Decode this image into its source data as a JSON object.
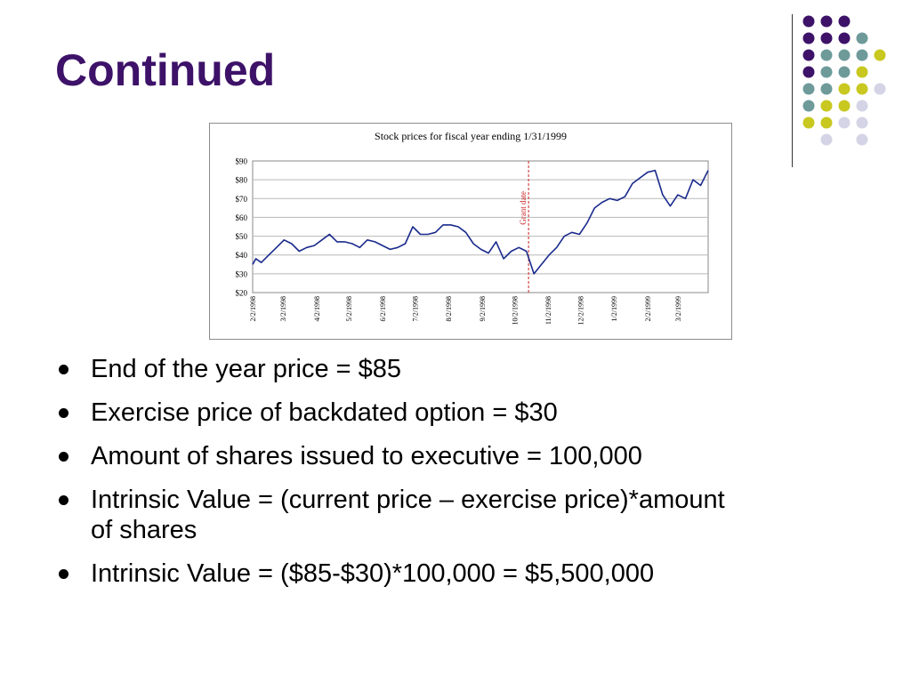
{
  "slide": {
    "title": "Continued"
  },
  "bullets": [
    "End of the year price = $85",
    "Exercise price of backdated option = $30",
    "Amount of shares issued to executive = 100,000",
    "Intrinsic Value = (current price – exercise price)*amount of shares",
    "Intrinsic Value = ($85-$30)*100,000 = $5,500,000"
  ],
  "decoration": {
    "dot_colors": [
      "#3d1268",
      "#6e9a9a",
      "#c8c820",
      "#d4d4e6"
    ]
  },
  "chart_data": {
    "type": "line",
    "title": "Stock prices for fiscal year ending 1/31/1999",
    "xlabel": "",
    "ylabel": "",
    "ylim": [
      20,
      90
    ],
    "yticks": [
      "$20",
      "$30",
      "$40",
      "$50",
      "$60",
      "$70",
      "$80",
      "$90"
    ],
    "ytick_values": [
      20,
      30,
      40,
      50,
      60,
      70,
      80,
      90
    ],
    "xticks": [
      "2/2/1998",
      "3/2/1998",
      "4/2/1998",
      "5/2/1998",
      "6/2/1998",
      "7/2/1998",
      "8/2/1998",
      "9/2/1998",
      "10/2/1998",
      "11/2/1998",
      "12/2/1998",
      "1/2/1999",
      "2/2/1999",
      "3/2/1999"
    ],
    "grid": true,
    "line_color": "#1a2a8c",
    "annotation": {
      "label": "Grant date",
      "x": "10/15/1998",
      "color": "#cc2222"
    },
    "series": [
      {
        "values": [
          [
            "2/2/1998",
            35
          ],
          [
            "2/5/1998",
            38
          ],
          [
            "2/10/1998",
            36
          ],
          [
            "2/17/1998",
            40
          ],
          [
            "2/24/1998",
            44
          ],
          [
            "3/3/1998",
            48
          ],
          [
            "3/10/1998",
            46
          ],
          [
            "3/17/1998",
            42
          ],
          [
            "3/24/1998",
            44
          ],
          [
            "3/31/1998",
            45
          ],
          [
            "4/7/1998",
            48
          ],
          [
            "4/14/1998",
            51
          ],
          [
            "4/21/1998",
            47
          ],
          [
            "4/28/1998",
            47
          ],
          [
            "5/5/1998",
            46
          ],
          [
            "5/12/1998",
            44
          ],
          [
            "5/19/1998",
            48
          ],
          [
            "5/26/1998",
            47
          ],
          [
            "6/2/1998",
            45
          ],
          [
            "6/9/1998",
            43
          ],
          [
            "6/16/1998",
            44
          ],
          [
            "6/23/1998",
            46
          ],
          [
            "6/30/1998",
            55
          ],
          [
            "7/7/1998",
            51
          ],
          [
            "7/14/1998",
            51
          ],
          [
            "7/21/1998",
            52
          ],
          [
            "7/28/1998",
            56
          ],
          [
            "8/4/1998",
            56
          ],
          [
            "8/11/1998",
            55
          ],
          [
            "8/18/1998",
            52
          ],
          [
            "8/25/1998",
            46
          ],
          [
            "9/1/1998",
            43
          ],
          [
            "9/8/1998",
            41
          ],
          [
            "9/15/1998",
            47
          ],
          [
            "9/22/1998",
            38
          ],
          [
            "9/29/1998",
            42
          ],
          [
            "10/6/1998",
            44
          ],
          [
            "10/13/1998",
            42
          ],
          [
            "10/20/1998",
            30
          ],
          [
            "10/27/1998",
            35
          ],
          [
            "11/3/1998",
            40
          ],
          [
            "11/10/1998",
            44
          ],
          [
            "11/17/1998",
            50
          ],
          [
            "11/24/1998",
            52
          ],
          [
            "12/1/1998",
            51
          ],
          [
            "12/8/1998",
            57
          ],
          [
            "12/15/1998",
            65
          ],
          [
            "12/22/1998",
            68
          ],
          [
            "12/29/1998",
            70
          ],
          [
            "1/5/1999",
            69
          ],
          [
            "1/12/1999",
            71
          ],
          [
            "1/19/1999",
            78
          ],
          [
            "1/26/1999",
            81
          ],
          [
            "2/2/1999",
            84
          ],
          [
            "2/9/1999",
            85
          ],
          [
            "2/16/1999",
            72
          ],
          [
            "2/23/1999",
            66
          ],
          [
            "3/2/1999",
            72
          ],
          [
            "3/9/1999",
            70
          ],
          [
            "3/16/1999",
            80
          ],
          [
            "3/23/1999",
            77
          ],
          [
            "3/30/1999",
            85
          ]
        ]
      }
    ]
  }
}
